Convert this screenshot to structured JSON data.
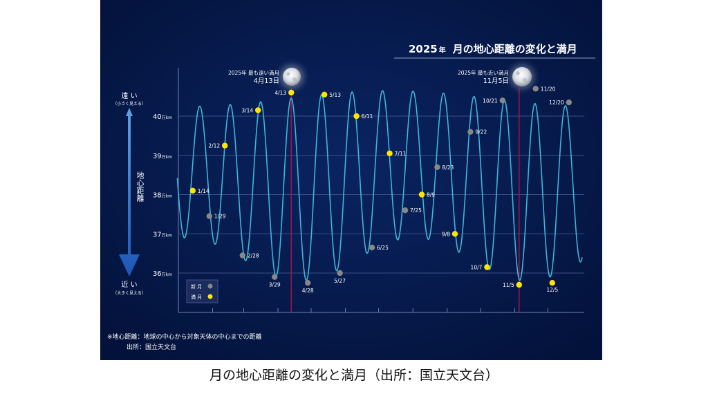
{
  "chart_title": {
    "year": "2025",
    "year_suffix": "年",
    "text": "月の地心距離の変化と満月"
  },
  "axis": {
    "far_label": "遠 い",
    "far_sub": "（小さく見える）",
    "near_label": "近 い",
    "near_sub": "（大きく見える）",
    "ylabel": "地心距離",
    "unit": "万km"
  },
  "legend": {
    "new_moon": "新 月",
    "full_moon": "満 月"
  },
  "annotations": [
    {
      "title": "2025年 最も遠い満月",
      "date": "4月13日"
    },
    {
      "title": "2025年 最も近い満月",
      "date": "11月5日"
    }
  ],
  "footnotes": {
    "line1": "※地心距離：地球の中心から対象天体の中心までの距離",
    "line2": "出所：国立天文台"
  },
  "caption": "月の地心距離の変化と満月（出所：国立天文台）",
  "colors": {
    "background": "#061a4e",
    "curve": "#3fb6d8",
    "full_moon": "#ffe600",
    "new_moon": "#888888",
    "marker_line": "#b3124a",
    "gridline": "#3a4f86"
  },
  "chart_data": {
    "type": "line",
    "ylim": [
      35.5,
      42
    ],
    "yticks": [
      36,
      37,
      38,
      39,
      40
    ],
    "x_range_days": [
      0,
      365
    ],
    "series": [
      {
        "name": "満 月",
        "points": [
          {
            "label": "1/14",
            "date": "2025-01-14",
            "distance": 38.1
          },
          {
            "label": "2/12",
            "date": "2025-02-12",
            "distance": 39.25
          },
          {
            "label": "3/14",
            "date": "2025-03-14",
            "distance": 40.15
          },
          {
            "label": "4/13",
            "date": "2025-04-13",
            "distance": 40.6
          },
          {
            "label": "5/13",
            "date": "2025-05-13",
            "distance": 40.55
          },
          {
            "label": "6/11",
            "date": "2025-06-11",
            "distance": 40.0
          },
          {
            "label": "7/11",
            "date": "2025-07-11",
            "distance": 39.05
          },
          {
            "label": "8/9",
            "date": "2025-08-09",
            "distance": 38.0
          },
          {
            "label": "9/8",
            "date": "2025-09-08",
            "distance": 37.0
          },
          {
            "label": "10/7",
            "date": "2025-10-07",
            "distance": 36.15
          },
          {
            "label": "11/5",
            "date": "2025-11-05",
            "distance": 35.7
          },
          {
            "label": "12/5",
            "date": "2025-12-05",
            "distance": 35.75
          }
        ]
      },
      {
        "name": "新 月",
        "points": [
          {
            "label": "1/29",
            "date": "2025-01-29",
            "distance": 37.45
          },
          {
            "label": "2/28",
            "date": "2025-02-28",
            "distance": 36.45
          },
          {
            "label": "3/29",
            "date": "2025-03-29",
            "distance": 35.9
          },
          {
            "label": "4/28",
            "date": "2025-04-28",
            "distance": 35.75
          },
          {
            "label": "5/27",
            "date": "2025-05-27",
            "distance": 36.0
          },
          {
            "label": "6/25",
            "date": "2025-06-25",
            "distance": 36.65
          },
          {
            "label": "7/25",
            "date": "2025-07-25",
            "distance": 37.6
          },
          {
            "label": "8/23",
            "date": "2025-08-23",
            "distance": 38.7
          },
          {
            "label": "9/22",
            "date": "2025-09-22",
            "distance": 39.6
          },
          {
            "label": "10/21",
            "date": "2025-10-21",
            "distance": 40.4
          },
          {
            "label": "11/20",
            "date": "2025-11-20",
            "distance": 40.7
          },
          {
            "label": "12/20",
            "date": "2025-12-20",
            "distance": 40.35
          }
        ]
      }
    ],
    "highlight_dates": [
      "2025-04-13",
      "2025-11-05"
    ]
  }
}
